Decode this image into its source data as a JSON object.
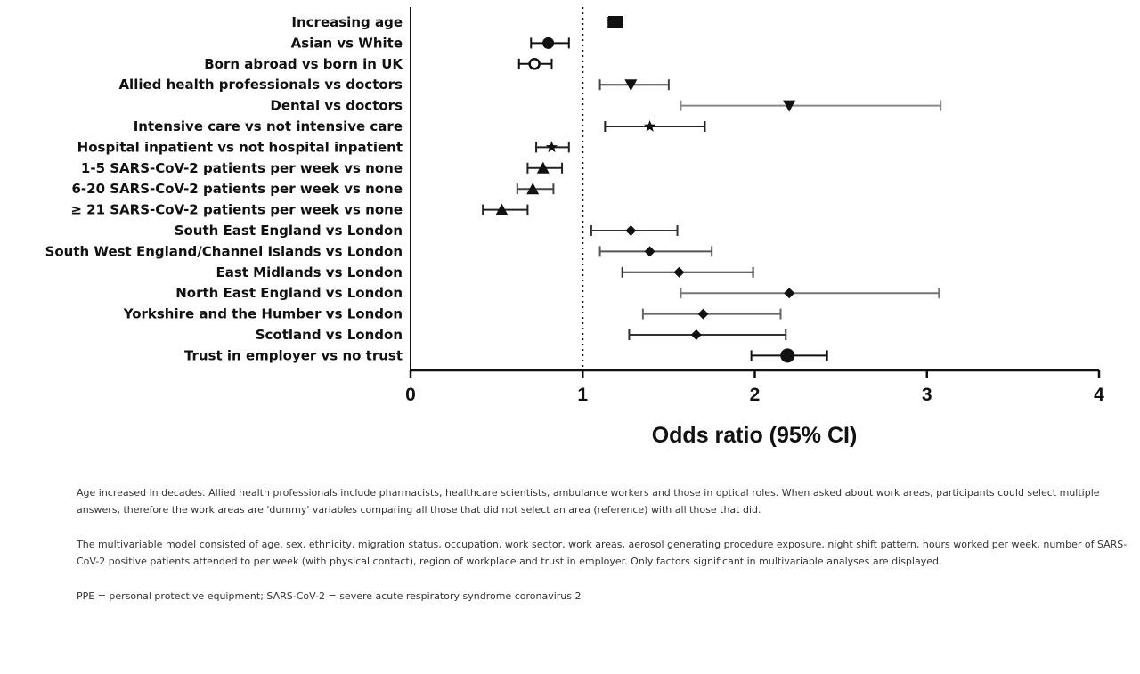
{
  "chart_data": {
    "type": "forest",
    "xlabel": "Odds ratio (95% CI)",
    "xlim": [
      0,
      4
    ],
    "xticks": [
      "0",
      "1",
      "2",
      "3",
      "4"
    ],
    "reference_line": 1,
    "grid": false,
    "rows": [
      {
        "label": "Increasing age",
        "or": 1.19,
        "lo": 1.15,
        "hi": 1.23,
        "marker": "square",
        "color": "#111111"
      },
      {
        "label": "Asian vs White",
        "or": 0.8,
        "lo": 0.7,
        "hi": 0.92,
        "marker": "circle",
        "color": "#111111"
      },
      {
        "label": "Born abroad vs born in UK",
        "or": 0.72,
        "lo": 0.63,
        "hi": 0.82,
        "marker": "circle-open",
        "color": "#111111"
      },
      {
        "label": "Allied health professionals vs doctors",
        "or": 1.28,
        "lo": 1.1,
        "hi": 1.5,
        "marker": "triangle-down",
        "color": "#444444"
      },
      {
        "label": "Dental vs doctors",
        "or": 2.2,
        "lo": 1.57,
        "hi": 3.08,
        "marker": "triangle-down",
        "color": "#888888"
      },
      {
        "label": "Intensive care vs not intensive care",
        "or": 1.39,
        "lo": 1.13,
        "hi": 1.71,
        "marker": "star",
        "color": "#222222"
      },
      {
        "label": "Hospital inpatient vs not hospital inpatient",
        "or": 0.82,
        "lo": 0.73,
        "hi": 0.92,
        "marker": "star",
        "color": "#222222"
      },
      {
        "label": "1-5 SARS-CoV-2 patients per week vs none",
        "or": 0.77,
        "lo": 0.68,
        "hi": 0.88,
        "marker": "triangle",
        "color": "#222222"
      },
      {
        "label": "6-20 SARS-CoV-2 patients per week vs none",
        "or": 0.71,
        "lo": 0.62,
        "hi": 0.83,
        "marker": "triangle",
        "color": "#444444"
      },
      {
        "label": "≥ 21 SARS-CoV-2 patients per week vs none",
        "or": 0.53,
        "lo": 0.42,
        "hi": 0.68,
        "marker": "triangle",
        "color": "#222222"
      },
      {
        "label": "South East England vs London",
        "or": 1.28,
        "lo": 1.05,
        "hi": 1.55,
        "marker": "diamond",
        "color": "#333333"
      },
      {
        "label": "South West England/Channel Islands vs London",
        "or": 1.39,
        "lo": 1.1,
        "hi": 1.75,
        "marker": "diamond",
        "color": "#555555"
      },
      {
        "label": "East Midlands vs London",
        "or": 1.56,
        "lo": 1.23,
        "hi": 1.99,
        "marker": "diamond",
        "color": "#333333"
      },
      {
        "label": "North East England vs London",
        "or": 2.2,
        "lo": 1.57,
        "hi": 3.07,
        "marker": "diamond",
        "color": "#777777"
      },
      {
        "label": "Yorkshire and the Humber vs London",
        "or": 1.7,
        "lo": 1.35,
        "hi": 2.15,
        "marker": "diamond",
        "color": "#666666"
      },
      {
        "label": "Scotland vs London",
        "or": 1.66,
        "lo": 1.27,
        "hi": 2.18,
        "marker": "diamond",
        "color": "#333333"
      },
      {
        "label": "Trust in employer vs no trust",
        "or": 2.19,
        "lo": 1.98,
        "hi": 2.42,
        "marker": "circle-large",
        "color": "#111111"
      }
    ]
  },
  "notes": [
    "Age increased in decades. Allied health professionals include pharmacists, healthcare scientists, ambulance workers and those in optical roles. When asked about work areas, participants could select multiple answers, therefore the work areas are 'dummy' variables comparing all those that did not select an area (reference) with all those that did.",
    "The multivariable model consisted of age, sex, ethnicity, migration status, occupation, work sector, work areas, aerosol generating procedure exposure, night shift pattern, hours worked per week, number of SARS-CoV-2 positive patients attended to per week (with physical contact), region of workplace and trust in employer. Only factors significant in multivariable analyses are displayed.",
    "PPE = personal protective equipment; SARS-CoV-2 = severe acute respiratory syndrome coronavirus 2"
  ]
}
